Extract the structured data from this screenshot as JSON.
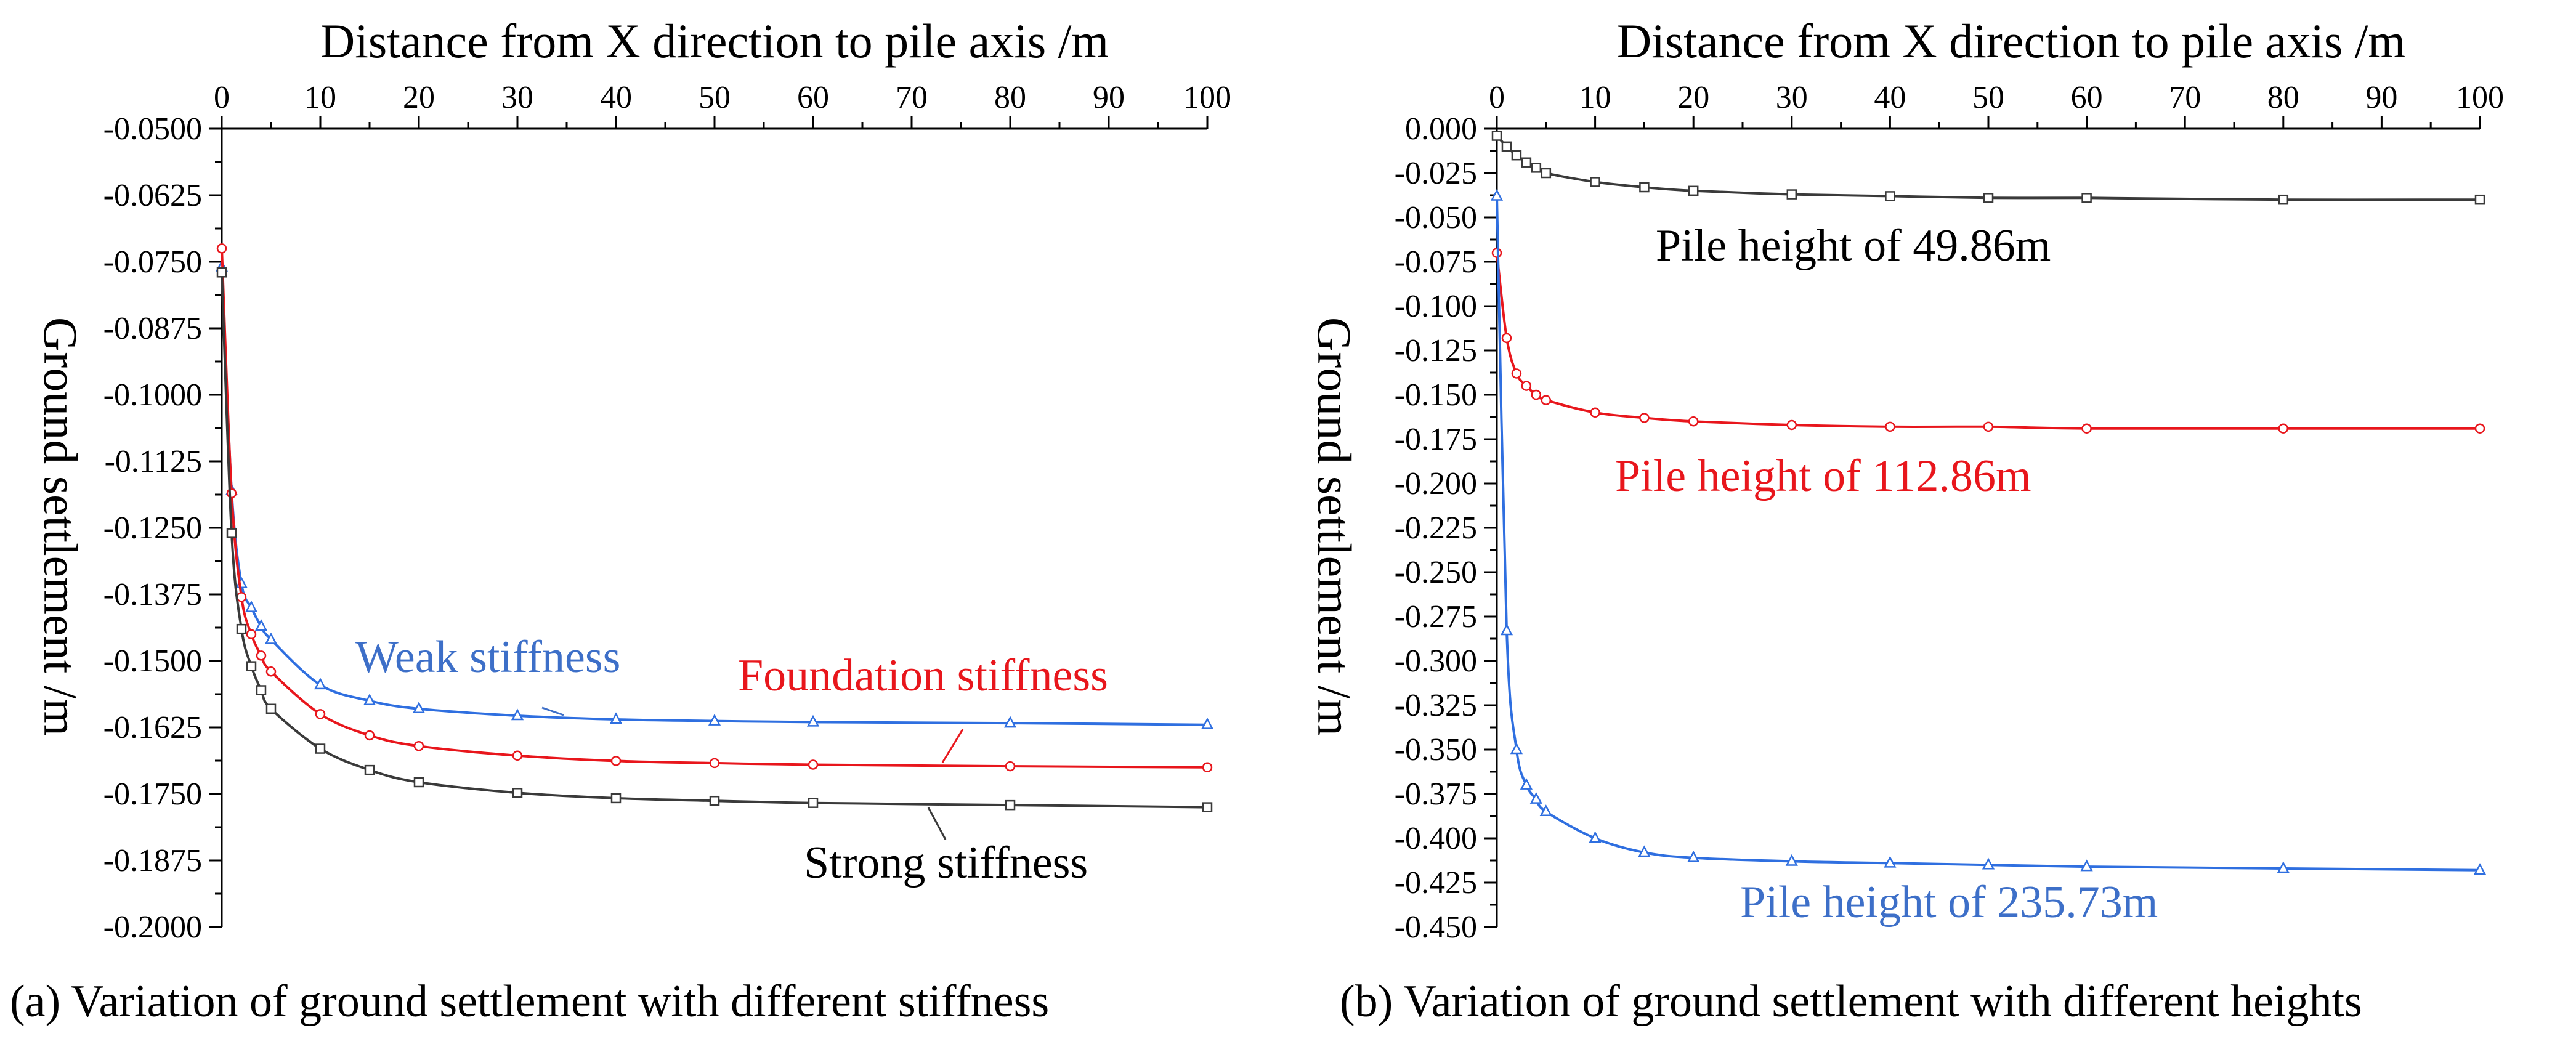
{
  "chart_data": [
    {
      "type": "line",
      "caption": "(a) Variation of ground settlement with different stiffness",
      "xlabel": "Distance from X direction to pile axis /m",
      "ylabel": "Ground settlement /m",
      "xlim": [
        0,
        100
      ],
      "ylim": [
        -0.2,
        -0.05
      ],
      "x_position": "top",
      "xticks": [
        "0",
        "10",
        "20",
        "30",
        "40",
        "50",
        "60",
        "70",
        "80",
        "90",
        "100"
      ],
      "yticks": [
        "-0.0500",
        "-0.0625",
        "-0.0750",
        "-0.0875",
        "-0.1000",
        "-0.1125",
        "-0.1250",
        "-0.1375",
        "-0.1500",
        "-0.1625",
        "-0.1750",
        "-0.1875",
        "-0.2000"
      ],
      "grid": false,
      "legend": "none",
      "series": [
        {
          "name": "Weak stiffness",
          "color": "#2f6fe0",
          "marker": "triangle",
          "x": [
            0,
            1,
            2,
            3,
            4,
            5,
            10,
            15,
            20,
            30,
            40,
            50,
            60,
            80,
            100
          ],
          "y": [
            -0.076,
            -0.118,
            -0.1355,
            -0.14,
            -0.1435,
            -0.146,
            -0.1545,
            -0.1575,
            -0.159,
            -0.1603,
            -0.161,
            -0.1613,
            -0.1615,
            -0.1617,
            -0.162
          ]
        },
        {
          "name": "Foundation stiffness",
          "color": "#e8161c",
          "marker": "circle",
          "x": [
            0,
            1,
            2,
            3,
            4,
            5,
            10,
            15,
            20,
            30,
            40,
            50,
            60,
            80,
            100
          ],
          "y": [
            -0.0725,
            -0.1185,
            -0.138,
            -0.145,
            -0.149,
            -0.152,
            -0.16,
            -0.164,
            -0.166,
            -0.1678,
            -0.1688,
            -0.1692,
            -0.1695,
            -0.1698,
            -0.17
          ]
        },
        {
          "name": "Strong stiffness",
          "color": "#3a3a3a",
          "marker": "square",
          "x": [
            0,
            1,
            2,
            3,
            4,
            5,
            10,
            15,
            20,
            30,
            40,
            50,
            60,
            80,
            100
          ],
          "y": [
            -0.077,
            -0.126,
            -0.144,
            -0.151,
            -0.1555,
            -0.159,
            -0.1665,
            -0.1705,
            -0.1728,
            -0.1748,
            -0.1758,
            -0.1763,
            -0.1767,
            -0.1771,
            -0.1775
          ]
        }
      ],
      "annotations": [
        {
          "text": "Weak stiffness",
          "color": "#3d6fc8"
        },
        {
          "text": "Foundation stiffness",
          "color": "#e8161c"
        },
        {
          "text": "Strong stiffness",
          "color": "#000000"
        }
      ]
    },
    {
      "type": "line",
      "caption": "(b) Variation of ground settlement with different heights",
      "xlabel": "Distance from X direction to pile axis /m",
      "ylabel": "Ground settlement /m",
      "xlim": [
        0,
        100
      ],
      "ylim": [
        -0.45,
        0.0
      ],
      "x_position": "top",
      "xticks": [
        "0",
        "10",
        "20",
        "30",
        "40",
        "50",
        "60",
        "70",
        "80",
        "90",
        "100"
      ],
      "yticks": [
        "0.000",
        "-0.025",
        "-0.050",
        "-0.075",
        "-0.100",
        "-0.125",
        "-0.150",
        "-0.175",
        "-0.200",
        "-0.225",
        "-0.250",
        "-0.275",
        "-0.300",
        "-0.325",
        "-0.350",
        "-0.375",
        "-0.400",
        "-0.425",
        "-0.450"
      ],
      "grid": false,
      "legend": "none",
      "series": [
        {
          "name": "Pile height of 49.86m",
          "color": "#3a3a3a",
          "marker": "square",
          "x": [
            0,
            1,
            2,
            3,
            4,
            5,
            10,
            15,
            20,
            30,
            40,
            50,
            60,
            80,
            100
          ],
          "y": [
            -0.004,
            -0.01,
            -0.015,
            -0.019,
            -0.022,
            -0.025,
            -0.03,
            -0.033,
            -0.035,
            -0.037,
            -0.038,
            -0.039,
            -0.039,
            -0.04,
            -0.04
          ]
        },
        {
          "name": "Pile height of 112.86m",
          "color": "#e8161c",
          "marker": "circle",
          "x": [
            0,
            1,
            2,
            3,
            4,
            5,
            10,
            15,
            20,
            30,
            40,
            50,
            60,
            80,
            100
          ],
          "y": [
            -0.07,
            -0.118,
            -0.138,
            -0.145,
            -0.15,
            -0.153,
            -0.16,
            -0.163,
            -0.165,
            -0.167,
            -0.168,
            -0.168,
            -0.169,
            -0.169,
            -0.169
          ]
        },
        {
          "name": "Pile height of 235.73m",
          "color": "#2f6fe0",
          "marker": "triangle",
          "x": [
            0,
            1,
            2,
            3,
            4,
            5,
            10,
            15,
            20,
            30,
            40,
            50,
            60,
            80,
            100
          ],
          "y": [
            -0.038,
            -0.283,
            -0.35,
            -0.37,
            -0.378,
            -0.385,
            -0.4,
            -0.408,
            -0.411,
            -0.413,
            -0.414,
            -0.415,
            -0.416,
            -0.417,
            -0.418
          ]
        }
      ],
      "annotations": [
        {
          "text": "Pile height of 49.86m",
          "color": "#000000"
        },
        {
          "text": "Pile height of 112.86m",
          "color": "#e8161c"
        },
        {
          "text": "Pile height of 235.73m",
          "color": "#3d6fc8"
        }
      ]
    }
  ]
}
